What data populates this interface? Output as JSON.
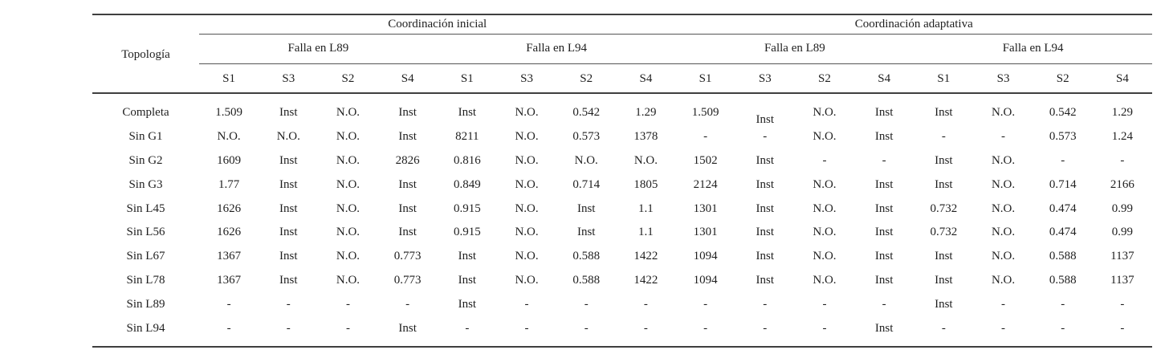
{
  "table": {
    "corner_label": "Topología",
    "group_headers": [
      {
        "label": "Coordinación inicial"
      },
      {
        "label": "Coordinación adaptativa"
      }
    ],
    "fault_headers": [
      "Falla en L89",
      "Falla en L94",
      "Falla en L89",
      "Falla en L94"
    ],
    "relay_headers": [
      "S1",
      "S3",
      "S2",
      "S4",
      "S1",
      "S3",
      "S2",
      "S4",
      "S1",
      "S3",
      "S2",
      "S4",
      "S1",
      "S3",
      "S2",
      "S4"
    ],
    "rows": [
      {
        "label": "Completa",
        "values": [
          "1.509",
          "Inst",
          "N.O.",
          "Inst",
          "Inst",
          "N.O.",
          "0.542",
          "1.29",
          "1.509",
          "Inst",
          "N.O.",
          "Inst",
          "Inst",
          "N.O.",
          "0.542",
          "1.29"
        ]
      },
      {
        "label": "Sin G1",
        "values": [
          "N.O.",
          "N.O.",
          "N.O.",
          "Inst",
          "8211",
          "N.O.",
          "0.573",
          "1378",
          "-",
          "-",
          "N.O.",
          "Inst",
          "-",
          "-",
          "0.573",
          "1.24"
        ]
      },
      {
        "label": "Sin G2",
        "values": [
          "1609",
          "Inst",
          "N.O.",
          "2826",
          "0.816",
          "N.O.",
          "N.O.",
          "N.O.",
          "1502",
          "Inst",
          "-",
          "-",
          "Inst",
          "N.O.",
          "-",
          "-"
        ]
      },
      {
        "label": "Sin G3",
        "values": [
          "1.77",
          "Inst",
          "N.O.",
          "Inst",
          "0.849",
          "N.O.",
          "0.714",
          "1805",
          "2124",
          "Inst",
          "N.O.",
          "Inst",
          "Inst",
          "N.O.",
          "0.714",
          "2166"
        ]
      },
      {
        "label": "Sin L45",
        "values": [
          "1626",
          "Inst",
          "N.O.",
          "Inst",
          "0.915",
          "N.O.",
          "Inst",
          "1.1",
          "1301",
          "Inst",
          "N.O.",
          "Inst",
          "0.732",
          "N.O.",
          "0.474",
          "0.99"
        ]
      },
      {
        "label": "Sin L56",
        "values": [
          "1626",
          "Inst",
          "N.O.",
          "Inst",
          "0.915",
          "N.O.",
          "Inst",
          "1.1",
          "1301",
          "Inst",
          "N.O.",
          "Inst",
          "0.732",
          "N.O.",
          "0.474",
          "0.99"
        ]
      },
      {
        "label": "Sin L67",
        "values": [
          "1367",
          "Inst",
          "N.O.",
          "0.773",
          "Inst",
          "N.O.",
          "0.588",
          "1422",
          "1094",
          "Inst",
          "N.O.",
          "Inst",
          "Inst",
          "N.O.",
          "0.588",
          "1137"
        ]
      },
      {
        "label": "Sin L78",
        "values": [
          "1367",
          "Inst",
          "N.O.",
          "0.773",
          "Inst",
          "N.O.",
          "0.588",
          "1422",
          "1094",
          "Inst",
          "N.O.",
          "Inst",
          "Inst",
          "N.O.",
          "0.588",
          "1137"
        ]
      },
      {
        "label": "Sin L89",
        "values": [
          "-",
          "-",
          "-",
          "-",
          "Inst",
          "-",
          "-",
          "-",
          "-",
          "-",
          "-",
          "-",
          "Inst",
          "-",
          "-",
          "-"
        ]
      },
      {
        "label": "Sin L94",
        "values": [
          "-",
          "-",
          "-",
          "Inst",
          "-",
          "-",
          "-",
          "-",
          "-",
          "-",
          "-",
          "Inst",
          "-",
          "-",
          "-",
          "-"
        ]
      }
    ],
    "colors": {
      "text": "#1f1f1f",
      "rule_heavy": "#3f3f3f",
      "rule_light": "#555555"
    }
  }
}
